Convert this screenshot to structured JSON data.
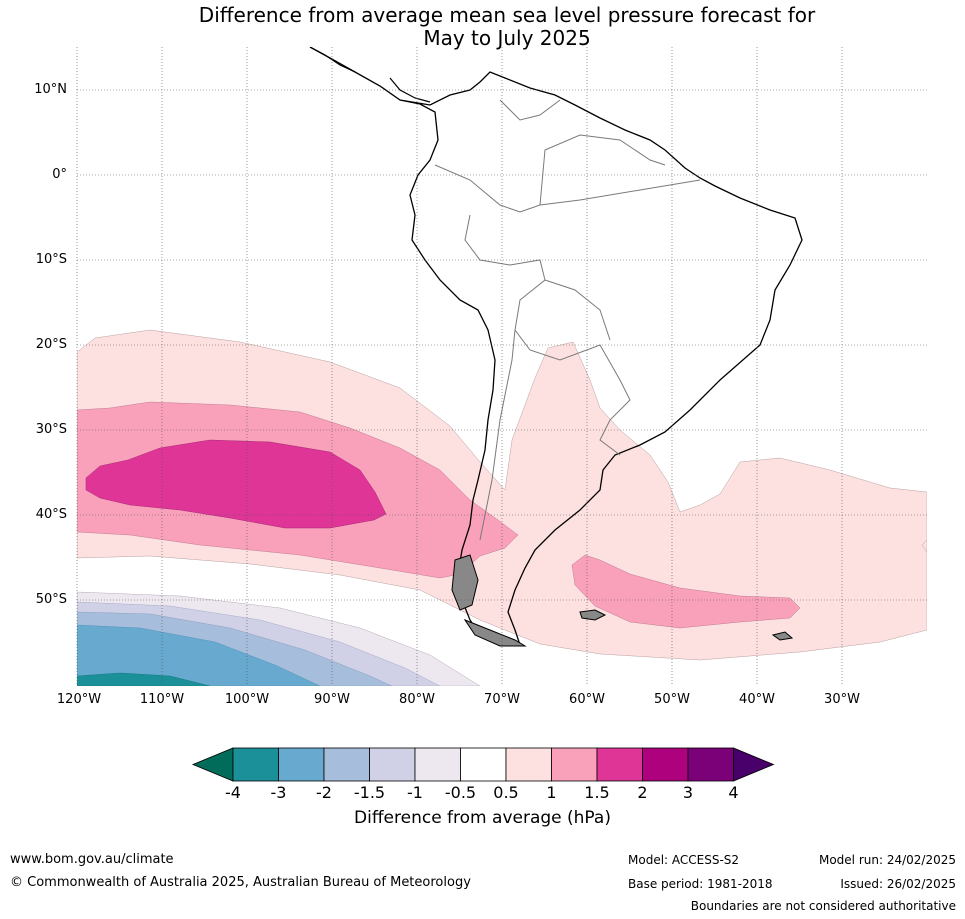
{
  "title": {
    "line1": "Difference from average mean sea level pressure forecast for",
    "line2": "May to July 2025"
  },
  "map": {
    "lat_labels": [
      "10°N",
      "0°",
      "10°S",
      "20°S",
      "30°S",
      "40°S",
      "50°S"
    ],
    "lon_labels": [
      "120°W",
      "110°W",
      "100°W",
      "90°W",
      "80°W",
      "70°W",
      "60°W",
      "50°W",
      "40°W",
      "30°W"
    ],
    "region": "South America",
    "fill_levels_hPa": [
      {
        "range": "0.5 to 1",
        "color": "#fde0e0",
        "area": "broad band 20°S–55°S across the Pacific, plus South Atlantic east of South America"
      },
      {
        "range": "1 to 1.5",
        "color": "#f9a0bb",
        "area": "Pacific band 28°S–47°S, and area 45°S–52°S near 45°W–65°W"
      },
      {
        "range": "1.5 to 2",
        "color": "#de3597",
        "area": "core near 33°S–42°S, 85°W–118°W"
      },
      {
        "range": "-0.5 to -1",
        "color": "#ede8f0",
        "area": "south of 50°S, west of 75°W"
      },
      {
        "range": "-1 to -1.5",
        "color": "#d0d1e6",
        "area": "south of 52°S, west of 80°W"
      },
      {
        "range": "-1.5 to -2",
        "color": "#a6bddb",
        "area": "south of 53°S, west of 90°W"
      },
      {
        "range": "-2 to -3",
        "color": "#67a9cf",
        "area": "south of 55°S, west of 100°W"
      },
      {
        "range": "-3 to -4",
        "color": "#1c9099",
        "area": "southwest corner near 60°S, 110°W"
      }
    ]
  },
  "colorbar": {
    "ticks": [
      "-4",
      "-3",
      "-2",
      "-1.5",
      "-1",
      "-0.5",
      "0.5",
      "1",
      "1.5",
      "2",
      "3",
      "4"
    ],
    "colors": [
      "#016c59",
      "#1c9099",
      "#67a9cf",
      "#a6bddb",
      "#d0d1e6",
      "#ede8f0",
      "#ffffff",
      "#fde0e0",
      "#f9a0bb",
      "#de3597",
      "#ae017e",
      "#7a0177",
      "#49006a"
    ],
    "label": "Difference from average (hPa)"
  },
  "footer": {
    "website": "www.bom.gov.au/climate",
    "copyright": "© Commonwealth of Australia 2025, Australian Bureau of Meteorology",
    "model": "Model: ACCESS-S2",
    "base_period": "Base period: 1981-2018",
    "model_run": "Model run: 24/02/2025",
    "issued": "Issued: 26/02/2025",
    "disclaimer": "Boundaries are not considered authoritative"
  }
}
